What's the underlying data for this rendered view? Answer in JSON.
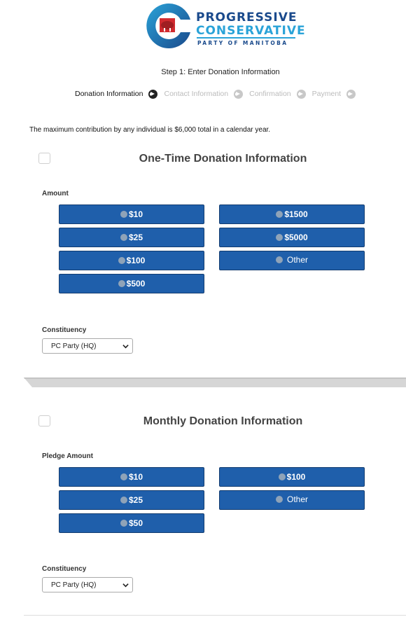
{
  "logo": {
    "line1": "PROGRESSIVE",
    "line2": "CONSERVATIVE",
    "line3": "PARTY OF MANITOBA"
  },
  "step_title": "Step 1: Enter Donation Information",
  "steps": [
    {
      "label": "Donation Information",
      "active": true
    },
    {
      "label": "Contact Information",
      "active": false
    },
    {
      "label": "Confirmation",
      "active": false
    },
    {
      "label": "Payment",
      "active": false
    }
  ],
  "max_note": "The maximum contribution by any individual is $6,000 total in a calendar year.",
  "one_time": {
    "title": "One-Time Donation Information",
    "amount_label": "Amount",
    "amounts": [
      "$10",
      "$25",
      "$100",
      "$500",
      "$1500",
      "$5000",
      "Other"
    ],
    "constituency_label": "Constituency",
    "constituency_value": "PC Party (HQ)"
  },
  "monthly": {
    "title": "Monthly Donation Information",
    "amount_label": "Pledge Amount",
    "amounts": [
      "$10",
      "$25",
      "$50",
      "$100",
      "Other"
    ],
    "constituency_label": "Constituency",
    "constituency_value": "PC Party (HQ)"
  },
  "colors": {
    "button_blue": "#1f5fab",
    "logo_navy": "#1a4a8c",
    "logo_cyan": "#2aa3d8",
    "logo_red": "#d12a2f"
  }
}
